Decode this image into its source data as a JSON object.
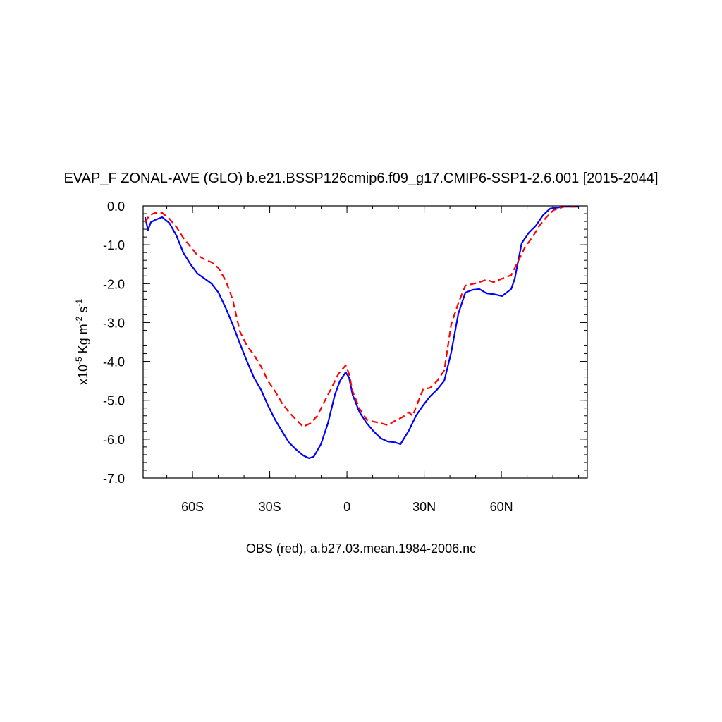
{
  "chart_data": {
    "type": "line",
    "title": "EVAP_F ZONAL-AVE (GLO) b.e21.BSSP126cmip6.f09_g17.CMIP6-SSP1-2.6.001 [2015-2044]",
    "ylabel": [
      "x10",
      "-5",
      " Kg m",
      "-2",
      " s",
      "-1"
    ],
    "footer": "OBS (red), a.b27.03.mean.1984-2006.nc",
    "xlim": [
      -79.2,
      93.4
    ],
    "ylim": [
      -7,
      0
    ],
    "xticks": [
      {
        "value": -60,
        "label": "60S"
      },
      {
        "value": -30,
        "label": "30S"
      },
      0,
      {
        "value": 30,
        "label": "30N"
      },
      {
        "value": 60,
        "label": "60N"
      }
    ],
    "yticks": [
      {
        "value": 0,
        "label": "0.0"
      },
      {
        "value": -1,
        "label": "-1.0"
      },
      {
        "value": -2,
        "label": "-2.0"
      },
      {
        "value": -3,
        "label": "-3.0"
      },
      {
        "value": -4,
        "label": "-4.0"
      },
      {
        "value": -5,
        "label": "-5.0"
      },
      {
        "value": -6,
        "label": "-6.0"
      },
      {
        "value": -7,
        "label": "-7.0"
      }
    ],
    "series": [
      {
        "color": "#0000ff",
        "dash": false,
        "x": [
          -78.4,
          -77.3,
          -76.2,
          -74.5,
          -71.8,
          -69.0,
          -66.3,
          -63.6,
          -60.8,
          -58.1,
          -55.3,
          -52.6,
          -49.9,
          -47.1,
          -44.4,
          -41.6,
          -38.9,
          -36.2,
          -33.4,
          -30.7,
          -27.9,
          -25.2,
          -22.5,
          -19.7,
          -17.0,
          -14.8,
          -12.9,
          -10.1,
          -7.4,
          -4.7,
          -2.7,
          -0.5,
          0.8,
          2.2,
          4.9,
          7.7,
          10.4,
          13.2,
          15.9,
          18.6,
          20.8,
          24.1,
          26.8,
          29.6,
          32.3,
          35.1,
          37.8,
          40.5,
          43.3,
          46.0,
          48.8,
          51.5,
          54.2,
          57.0,
          60.3,
          63.8,
          65.2,
          67.9,
          70.7,
          73.4,
          76.2,
          78.9,
          84.4,
          89.9
        ],
        "values": [
          -0.29,
          -0.62,
          -0.42,
          -0.36,
          -0.29,
          -0.44,
          -0.76,
          -1.2,
          -1.5,
          -1.74,
          -1.87,
          -2.0,
          -2.23,
          -2.63,
          -3.05,
          -3.54,
          -3.99,
          -4.41,
          -4.73,
          -5.13,
          -5.5,
          -5.8,
          -6.09,
          -6.27,
          -6.42,
          -6.49,
          -6.45,
          -6.13,
          -5.59,
          -4.86,
          -4.5,
          -4.28,
          -4.41,
          -4.86,
          -5.31,
          -5.59,
          -5.8,
          -5.98,
          -6.06,
          -6.08,
          -6.13,
          -5.77,
          -5.4,
          -5.13,
          -4.9,
          -4.72,
          -4.5,
          -3.77,
          -2.77,
          -2.23,
          -2.16,
          -2.14,
          -2.25,
          -2.27,
          -2.32,
          -2.14,
          -1.87,
          -0.96,
          -0.69,
          -0.51,
          -0.24,
          -0.07,
          -0.02,
          -0.02
        ]
      },
      {
        "color": "#ff0000",
        "dash": true,
        "x": [
          -78.4,
          -76.7,
          -74.5,
          -71.8,
          -69.0,
          -66.3,
          -63.6,
          -60.8,
          -58.1,
          -55.3,
          -52.6,
          -49.9,
          -47.1,
          -44.4,
          -41.6,
          -38.9,
          -36.2,
          -33.4,
          -30.7,
          -27.9,
          -25.2,
          -22.5,
          -19.7,
          -17.0,
          -14.2,
          -11.5,
          -8.8,
          -6.0,
          -3.3,
          -0.5,
          0.8,
          2.2,
          4.9,
          7.7,
          10.4,
          13.2,
          15.9,
          18.6,
          21.4,
          24.1,
          25.5,
          28.2,
          29.6,
          32.3,
          35.1,
          37.8,
          40.5,
          43.3,
          46.0,
          48.8,
          51.5,
          54.2,
          57.0,
          60.3,
          63.8,
          66.6,
          69.3,
          72.1,
          74.8,
          77.5,
          80.3,
          84.4,
          89.9
        ],
        "values": [
          -0.42,
          -0.24,
          -0.18,
          -0.18,
          -0.33,
          -0.54,
          -0.82,
          -1.05,
          -1.27,
          -1.38,
          -1.45,
          -1.6,
          -1.92,
          -2.41,
          -3.23,
          -3.59,
          -3.83,
          -4.13,
          -4.5,
          -4.77,
          -5.08,
          -5.31,
          -5.5,
          -5.68,
          -5.59,
          -5.4,
          -5.04,
          -4.68,
          -4.32,
          -4.1,
          -4.32,
          -4.77,
          -5.22,
          -5.5,
          -5.55,
          -5.59,
          -5.64,
          -5.53,
          -5.44,
          -5.31,
          -5.4,
          -4.95,
          -4.72,
          -4.68,
          -4.5,
          -4.23,
          -3.05,
          -2.5,
          -2.05,
          -2.01,
          -1.96,
          -1.9,
          -1.96,
          -1.87,
          -1.78,
          -1.41,
          -1.05,
          -0.8,
          -0.51,
          -0.29,
          -0.11,
          -0.02,
          -0.02
        ]
      }
    ]
  }
}
